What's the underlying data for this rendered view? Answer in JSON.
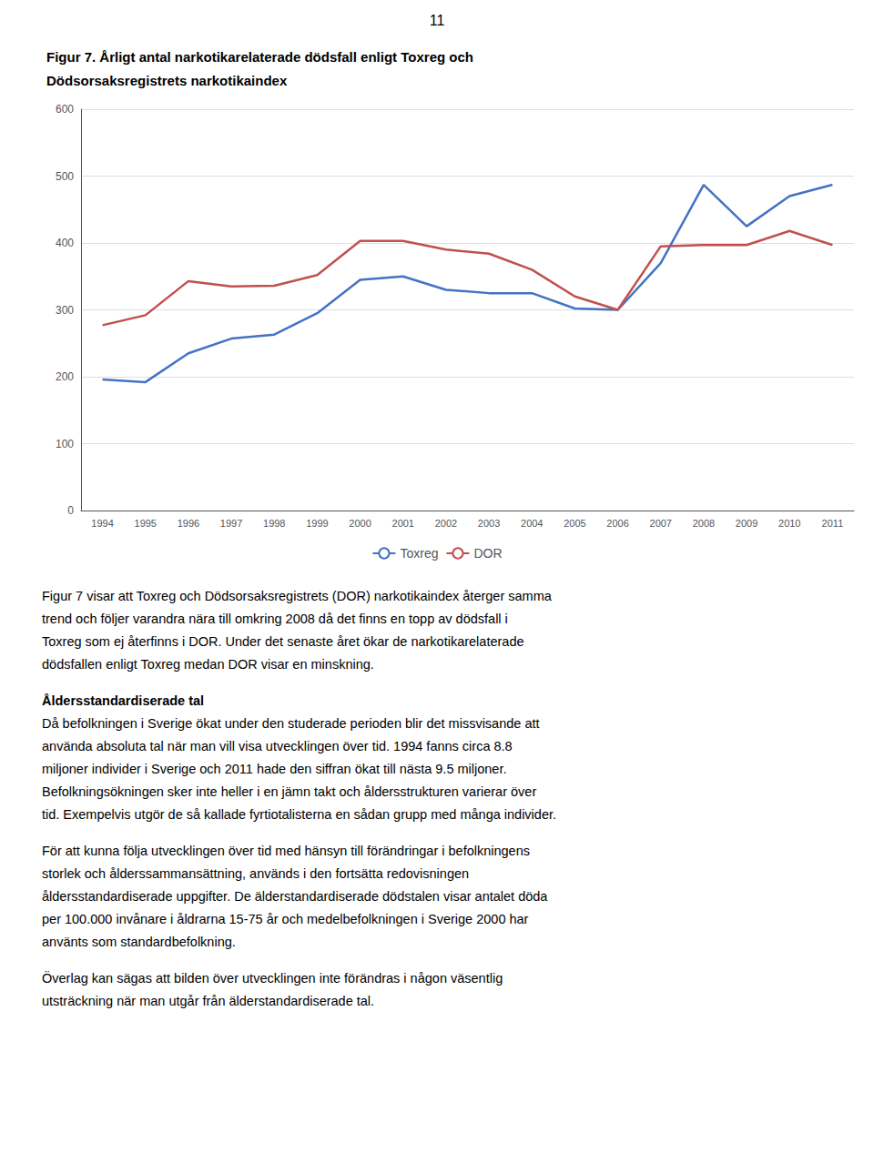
{
  "chart_data": {
    "type": "line",
    "title": "Figur 7. Årligt antal narkotikarelaterade dödsfall enligt Toxreg och\nDödsorsaksregistrets narkotikaindex",
    "categories": [
      "1994",
      "1995",
      "1996",
      "1997",
      "1998",
      "1999",
      "2000",
      "2001",
      "2002",
      "2003",
      "2004",
      "2005",
      "2006",
      "2007",
      "2008",
      "2009",
      "2010",
      "2011"
    ],
    "series": [
      {
        "name": "Toxreg",
        "color": "#4472C4",
        "values": [
          196,
          192,
          235,
          257,
          263,
          295,
          345,
          350,
          330,
          325,
          325,
          302,
          300,
          370,
          487,
          425,
          470,
          487
        ]
      },
      {
        "name": "DOR",
        "color": "#C0504D",
        "values": [
          277,
          292,
          343,
          335,
          336,
          352,
          403,
          403,
          390,
          384,
          360,
          320,
          300,
          395,
          397,
          397,
          418,
          397
        ]
      }
    ],
    "ylim": [
      0,
      600
    ],
    "yticks": [
      0,
      100,
      200,
      300,
      400,
      500,
      600
    ],
    "grid": true,
    "legend": "bottom",
    "annotations": [
      [
        "11"
      ],
      [
        "Figur 7 visar att Toxreg och Dödsorsaksregistrets (DOR) narkotikaindex återger samma",
        "trend och följer varandra nära till omkring 2008 då det finns en topp av dödsfall i",
        "Toxreg som ej återfinns i DOR. Under det senaste året ökar de narkotikarelaterade",
        "dödsfallen enligt Toxreg medan DOR visar en minskning."
      ],
      [
        "Åldersstandardiserade tal"
      ],
      [
        "Då befolkningen i Sverige ökat under den studerade perioden blir det missvisande att",
        "använda absoluta tal när man vill visa utvecklingen över tid. 1994 fanns circa 8.8",
        "miljoner individer i Sverige och 2011 hade den siffran ökat till nästa 9.5 miljoner.",
        "Befolkningsökningen sker inte heller i en jämn takt och åldersstrukturen varierar över",
        "tid. Exempelvis utgör de så kallade fyrtiotalisterna en sådan grupp med många individer."
      ],
      [
        "För att kunna följa utvecklingen över tid med hänsyn till förändringar i befolkningens",
        "storlek och ålderssammansättning, används i den fortsätta redovisningen",
        "åldersstandardiserade uppgifter. De älderstandardiserade dödstalen visar antalet döda",
        "per 100.000 invånare i åldrarna 15-75 år och medelbefolkningen i Sverige 2000 har",
        "använts som standardbefolkning."
      ],
      [
        "Överlag kan sägas att bilden över utvecklingen inte förändras i någon väsentlig",
        "utsträckning när man utgår från älderstandardiserade tal."
      ]
    ]
  }
}
